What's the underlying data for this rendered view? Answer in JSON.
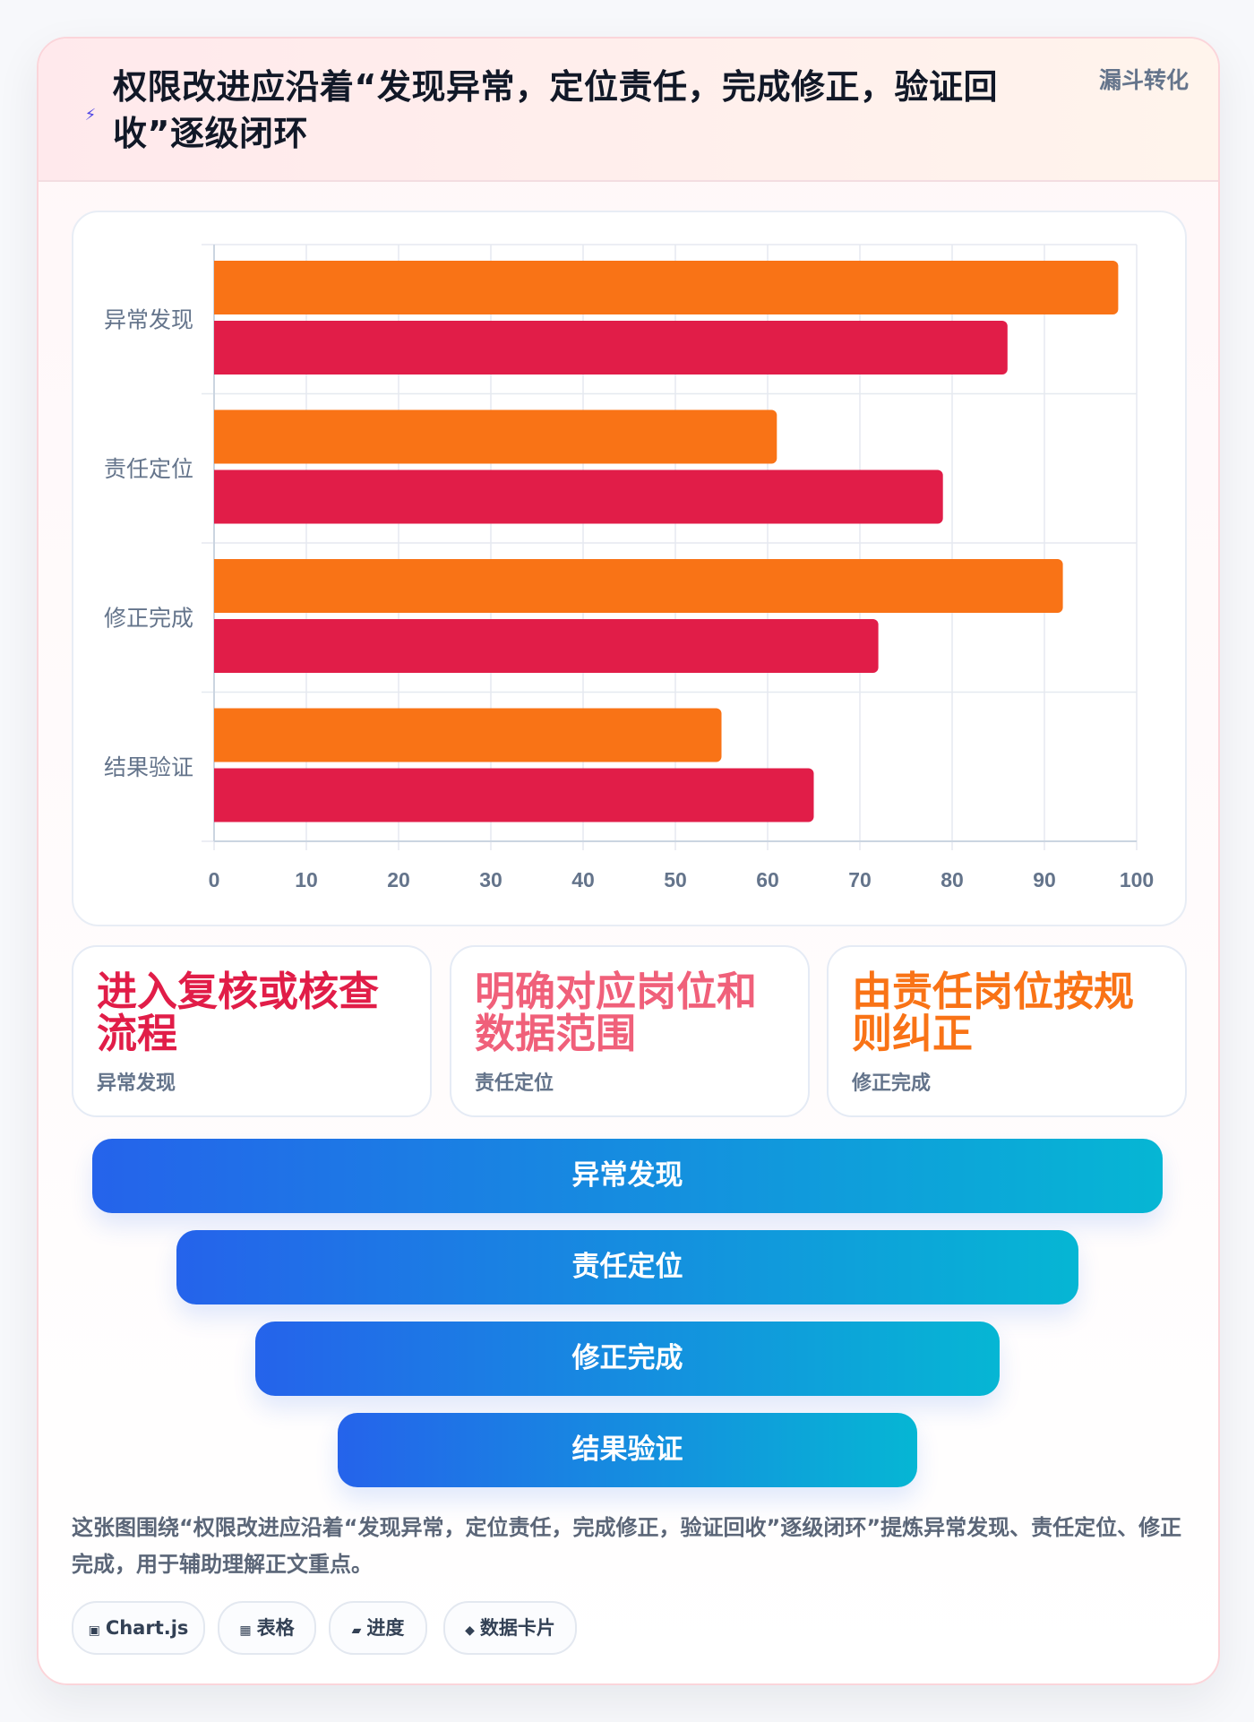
{
  "header": {
    "icon": "lightning-icon",
    "title": "权限改进应沿着“发现异常，定位责任，完成修正，验证回收”逐级闭环",
    "tag": "漏斗转化"
  },
  "chart_data": {
    "type": "bar",
    "orientation": "horizontal",
    "categories": [
      "异常发现",
      "责任定位",
      "修正完成",
      "结果验证"
    ],
    "series": [
      {
        "values": [
          98,
          61,
          92,
          55
        ],
        "color": "#f97316"
      },
      {
        "values": [
          86,
          79,
          72,
          65
        ],
        "color": "#e11d48"
      }
    ],
    "xlim": [
      0,
      100
    ],
    "x_ticks": [
      "0",
      "10",
      "20",
      "30",
      "40",
      "50",
      "60",
      "70",
      "80",
      "90",
      "100"
    ],
    "grid": true,
    "legend": "none"
  },
  "stats": [
    {
      "value": "进入复核或核查流程",
      "label": "异常发现",
      "color": "#e11d48"
    },
    {
      "value": "明确对应岗位和数据范围",
      "label": "责任定位",
      "color": "#f0607a"
    },
    {
      "value": "由责任岗位按规则纠正",
      "label": "修正完成",
      "color": "#f97316"
    }
  ],
  "funnel": [
    "异常发现",
    "责任定位",
    "修正完成",
    "结果验证"
  ],
  "summary": "这张图围绕“权限改进应沿着“发现异常，定位责任，完成修正，验证回收”逐级闭环”提炼异常发现、责任定位、修正完成，用于辅助理解正文重点。",
  "pills": [
    {
      "icon": "chip-icon",
      "glyph": "▣",
      "label": "Chart.js"
    },
    {
      "icon": "table-icon",
      "glyph": "▦",
      "label": "表格"
    },
    {
      "icon": "progress-icon",
      "glyph": "▰",
      "label": "进度"
    },
    {
      "icon": "card-icon",
      "glyph": "◆",
      "label": "数据卡片"
    }
  ]
}
